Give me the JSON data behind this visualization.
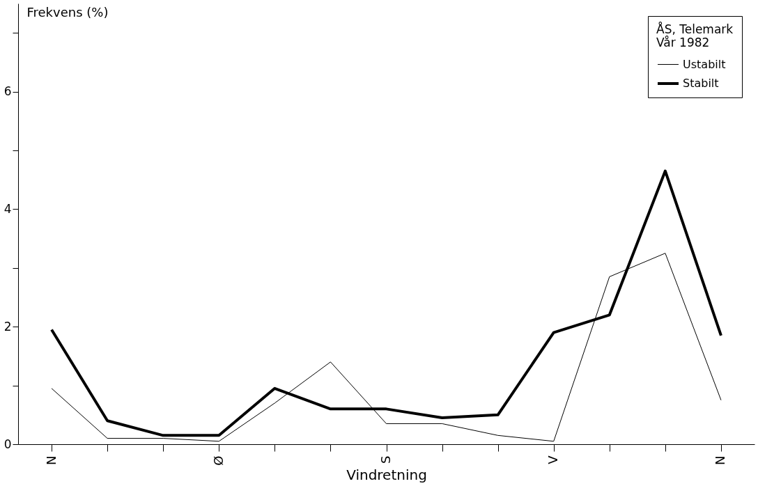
{
  "chart_data": {
    "type": "line",
    "ylabel": "Frekvens (%)",
    "xlabel": "Vindretning",
    "legend_title": "ÅS, Telemark",
    "subtitle": "Vår 1982",
    "categories": [
      "N",
      null,
      null,
      "Ø",
      null,
      null,
      "S",
      null,
      null,
      "V",
      null,
      null,
      "N"
    ],
    "series": [
      {
        "name": "Ustabilt",
        "color": "#000000",
        "values": [
          0.95,
          0.1,
          0.1,
          0.05,
          0.7,
          1.4,
          0.35,
          0.35,
          0.15,
          0.05,
          2.85,
          3.25,
          0.75
        ]
      },
      {
        "name": "Stabilt",
        "color": "#000000",
        "values": [
          1.95,
          0.4,
          0.15,
          0.15,
          0.95,
          0.6,
          0.6,
          0.45,
          0.5,
          1.9,
          2.2,
          4.65,
          1.85
        ]
      }
    ],
    "ylim": [
      0,
      7.5
    ],
    "yticks": [
      0,
      {
        "value": 1,
        "label": null
      },
      2,
      {
        "value": 3,
        "label": null
      },
      4,
      {
        "value": 5,
        "label": null
      },
      6,
      {
        "value": 7,
        "label": null
      }
    ],
    "grid": false,
    "legend": "top right",
    "marker": "none",
    "line_style": "solid"
  }
}
